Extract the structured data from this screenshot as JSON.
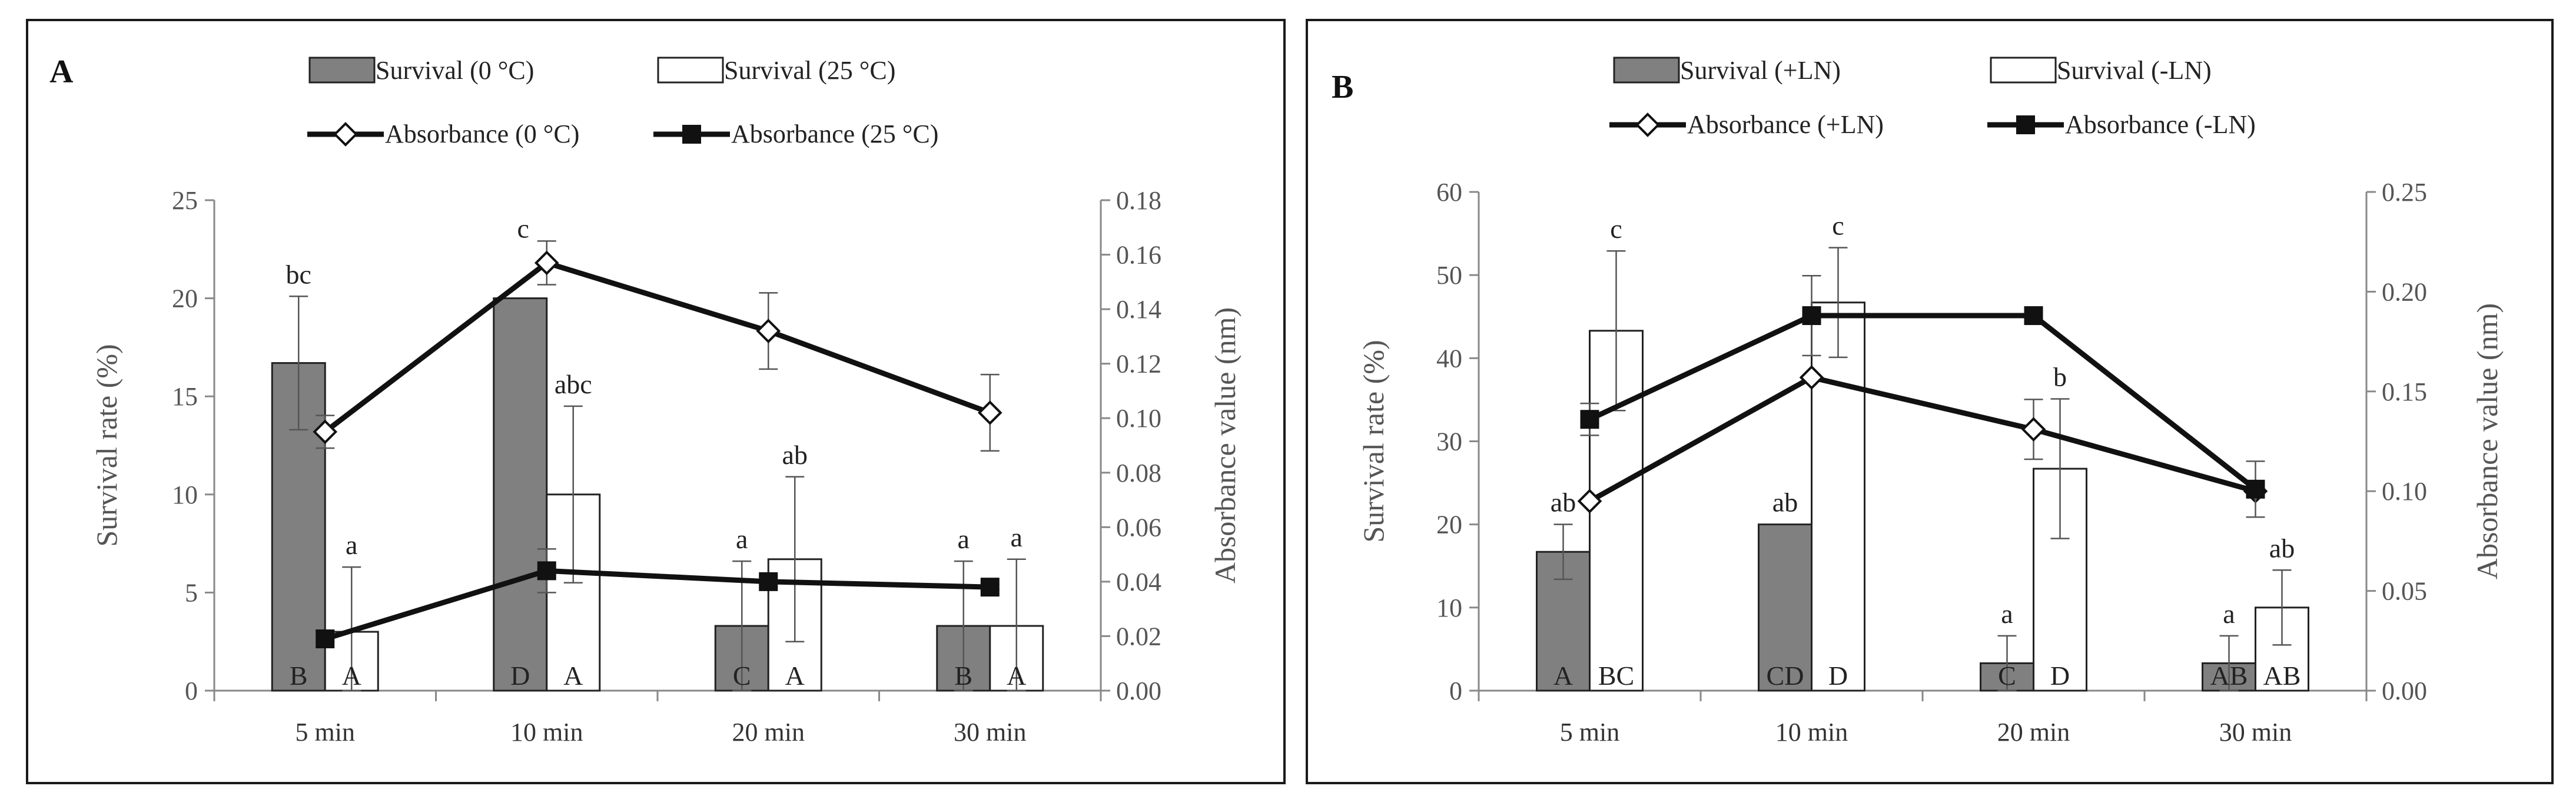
{
  "chart_data": [
    {
      "type": "bar",
      "panel_label": "A",
      "categories": [
        "5 min",
        "10 min",
        "20 min",
        "30 min"
      ],
      "ylabel": "Survival rate (%)",
      "y2label": "Absorbance value (nm)",
      "ylim": [
        0,
        25
      ],
      "yticks": [
        "0",
        "5",
        "10",
        "15",
        "20",
        "25"
      ],
      "y2lim": [
        0,
        0.18
      ],
      "y2ticks": [
        "0.00",
        "0.02",
        "0.04",
        "0.06",
        "0.08",
        "0.10",
        "0.12",
        "0.14",
        "0.16",
        "0.18"
      ],
      "legend": [
        "Survival (0 °C)",
        "Survival (25 °C)",
        "Absorbance (0 °C)",
        "Absorbance (25 °C)"
      ],
      "bars": [
        {
          "name": "Survival (0 °C)",
          "fill": "#808080",
          "values": [
            16.7,
            20,
            3.3,
            3.3
          ],
          "err": [
            3.4,
            0,
            3.3,
            3.3
          ],
          "upper_letters": [
            "bc",
            "",
            "a",
            "a"
          ],
          "base_letters": [
            "B",
            "D",
            "C",
            "B"
          ]
        },
        {
          "name": "Survival (25 °C)",
          "fill": "#ffffff",
          "values": [
            3,
            10,
            6.7,
            3.3
          ],
          "err": [
            3.3,
            4.5,
            4.2,
            3.4
          ],
          "upper_letters": [
            "a",
            "abc",
            "ab",
            "a"
          ],
          "base_letters": [
            "A",
            "A",
            "A",
            "A"
          ]
        }
      ],
      "lines": [
        {
          "name": "Absorbance (0 °C)",
          "marker": "diamond",
          "values": [
            0.095,
            0.157,
            0.132,
            0.102
          ],
          "err": [
            0.006,
            0.008,
            0.014,
            0.014
          ],
          "labels": [
            "",
            "c",
            "",
            ""
          ]
        },
        {
          "name": "Absorbance (25 °C)",
          "marker": "square",
          "values": [
            0.019,
            0.044,
            0.04,
            0.038
          ],
          "err": [
            0.001,
            0.008,
            0.002,
            0.001
          ],
          "labels": [
            "",
            "",
            "",
            ""
          ]
        }
      ]
    },
    {
      "type": "bar",
      "panel_label": "B",
      "categories": [
        "5 min",
        "10 min",
        "20 min",
        "30 min"
      ],
      "ylabel": "Survival rate (%)",
      "y2label": "Absorbance value (nm)",
      "ylim": [
        0,
        60
      ],
      "yticks": [
        "0",
        "10",
        "20",
        "30",
        "40",
        "50",
        "60"
      ],
      "y2lim": [
        0,
        0.25
      ],
      "y2ticks": [
        "0.00",
        "0.05",
        "0.10",
        "0.15",
        "0.20",
        "0.25"
      ],
      "legend": [
        "Survival (+LN)",
        "Survival (-LN)",
        "Absorbance (+LN)",
        "Absorbance (-LN)"
      ],
      "bars": [
        {
          "name": "Survival (+LN)",
          "fill": "#808080",
          "values": [
            16.7,
            20,
            3.3,
            3.3
          ],
          "err": [
            3.3,
            0,
            3.3,
            3.3
          ],
          "upper_letters": [
            "ab",
            "ab",
            "a",
            "a"
          ],
          "base_letters": [
            "A",
            "CD",
            "C",
            "AB"
          ]
        },
        {
          "name": "Survival (-LN)",
          "fill": "#ffffff",
          "values": [
            43.3,
            46.7,
            26.7,
            10
          ],
          "err": [
            9.6,
            6.6,
            8.4,
            4.5
          ],
          "upper_letters": [
            "c",
            "c",
            "b",
            "ab"
          ],
          "base_letters": [
            "BC",
            "D",
            "D",
            "AB"
          ]
        }
      ],
      "lines": [
        {
          "name": "Absorbance (+LN)",
          "marker": "diamond",
          "values": [
            0.095,
            0.157,
            0.131,
            0.1
          ],
          "err": [
            0.0,
            0.0,
            0.015,
            0.0
          ],
          "labels": [
            "",
            "",
            "",
            ""
          ]
        },
        {
          "name": "Absorbance (-LN)",
          "marker": "square",
          "values": [
            0.136,
            0.188,
            0.188,
            0.101
          ],
          "err": [
            0.008,
            0.02,
            0.0,
            0.014
          ],
          "labels": [
            "",
            "",
            "",
            ""
          ]
        }
      ]
    }
  ]
}
